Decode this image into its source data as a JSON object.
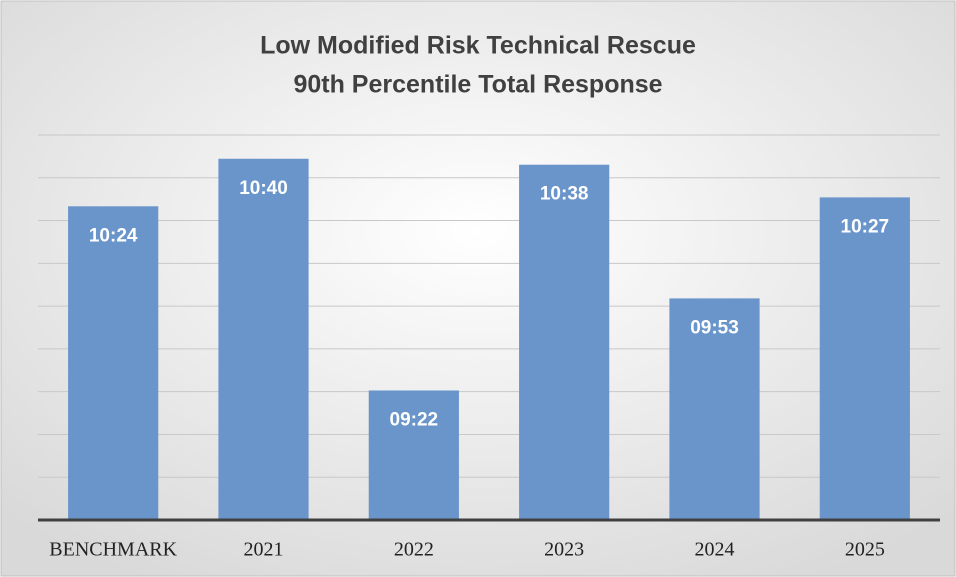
{
  "chart_data": {
    "type": "bar",
    "title": [
      "Low Modified Risk Technical Rescue",
      "90th Percentile Total Response"
    ],
    "categories": [
      "BENCHMARK",
      "2021",
      "2022",
      "2023",
      "2024",
      "2025"
    ],
    "values": [
      624,
      640,
      562,
      638,
      593,
      627
    ],
    "value_labels": [
      "10:24",
      "10:40",
      "09:22",
      "10:38",
      "09:53",
      "10:27"
    ],
    "color": "#6a95cb",
    "ylim": [
      518.4,
      648
    ],
    "yticks": [
      518.4,
      532.8,
      547.2,
      561.6,
      576,
      590.4,
      604.8,
      619.2,
      633.6,
      648
    ],
    "grid": true
  }
}
